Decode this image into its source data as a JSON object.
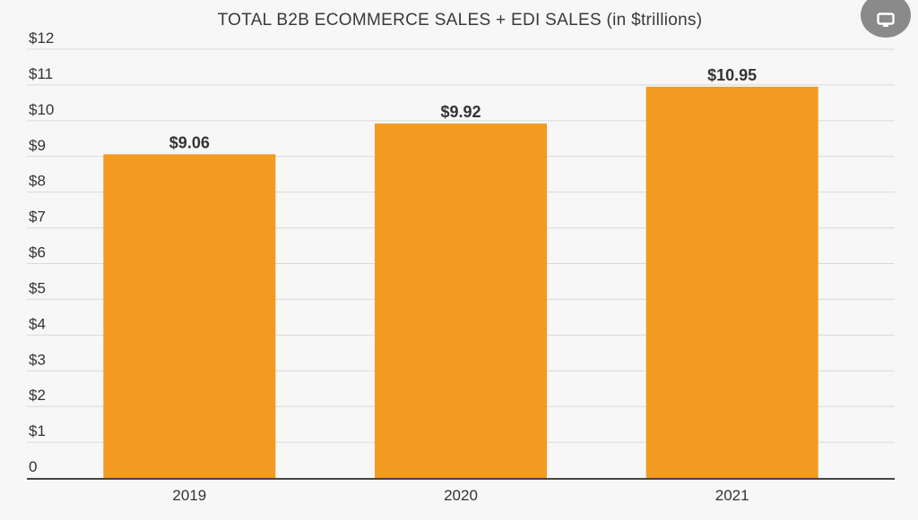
{
  "chart_data": {
    "type": "bar",
    "title": "TOTAL B2B ECOMMERCE SALES + EDI SALES (in $trillions)",
    "categories": [
      "2019",
      "2020",
      "2021"
    ],
    "values": [
      9.06,
      9.92,
      10.95
    ],
    "data_labels": [
      "$9.06",
      "$9.92",
      "$10.95"
    ],
    "ylim": [
      0,
      12
    ],
    "y_ticks": [
      {
        "value": 0,
        "label": "0"
      },
      {
        "value": 1,
        "label": "$1"
      },
      {
        "value": 2,
        "label": "$2"
      },
      {
        "value": 3,
        "label": "$3"
      },
      {
        "value": 4,
        "label": "$4"
      },
      {
        "value": 5,
        "label": "$5"
      },
      {
        "value": 6,
        "label": "$6"
      },
      {
        "value": 7,
        "label": "$7"
      },
      {
        "value": 8,
        "label": "$8"
      },
      {
        "value": 9,
        "label": "$9"
      },
      {
        "value": 10,
        "label": "$10"
      },
      {
        "value": 11,
        "label": "$11"
      },
      {
        "value": 12,
        "label": "$12"
      }
    ],
    "grid": true,
    "legend": "none",
    "bar_color": "#f39a21"
  },
  "controls": {
    "corner_button_icon": "monitor-icon",
    "corner_button_color": "#8a8a8a"
  }
}
